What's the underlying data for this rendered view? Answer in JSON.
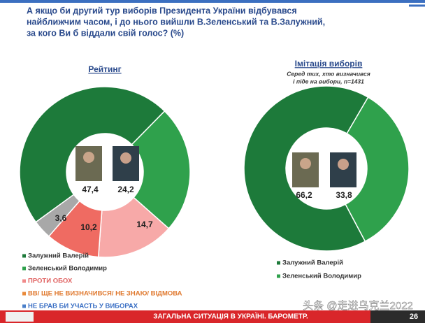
{
  "title_lines": [
    "А якщо би другий тур виборів Президента України відбувався",
    "найближчим часом, і до нього вийшли В.Зеленський та В.Залужний,",
    "за кого Ви б віддали свій голос? (%)"
  ],
  "footer": "ЗАГАЛЬНА СИТУАЦІЯ В УКРАЇНІ. БАРОМЕТР.",
  "page_number": "26",
  "watermark": "头条 @走进乌克兰2022",
  "chart_data": [
    {
      "type": "pie",
      "title": "Рейтинг",
      "categories": [
        "Залужний Валерій",
        "Зеленський Володимир",
        "ПРОТИ ОБОХ",
        "ВВ/ ЩЕ НЕ ВИЗНАЧИВСЯ/ НЕ ЗНАЮ/ ВІДМОВА",
        "НЕ БРАВ БИ УЧАСТЬ У ВИБОРАХ"
      ],
      "values": [
        47.4,
        24.2,
        14.7,
        10.2,
        3.6
      ],
      "value_labels": [
        "47,4",
        "24,2",
        "14,7",
        "10,2",
        "3,6"
      ],
      "colors": [
        "#1d7a3a",
        "#2fa14c",
        "#f7a9a8",
        "#ef6b62",
        "#a8a8a8"
      ],
      "legend_colors": [
        "#1d7a3a",
        "#2fa14c",
        "#f08a8a",
        "#e98a3a",
        "#4a7fc9"
      ],
      "legend_text_colors": [
        "#333333",
        "#333333",
        "#e0605f",
        "#e07a30",
        "#3a6fc4"
      ]
    },
    {
      "type": "pie",
      "title": "Імітація виборів",
      "subtitle_lines": [
        "Серед тих, хто визначився",
        "і піде на вибори, n=1431"
      ],
      "categories": [
        "Залужний Валерій",
        "Зеленський Володимир"
      ],
      "values": [
        66.2,
        33.8
      ],
      "value_labels": [
        "66,2",
        "33,8"
      ],
      "colors": [
        "#1d7a3a",
        "#2fa14c"
      ],
      "legend_colors": [
        "#1d7a3a",
        "#2fa14c"
      ],
      "legend_text_colors": [
        "#333333",
        "#333333"
      ]
    }
  ]
}
